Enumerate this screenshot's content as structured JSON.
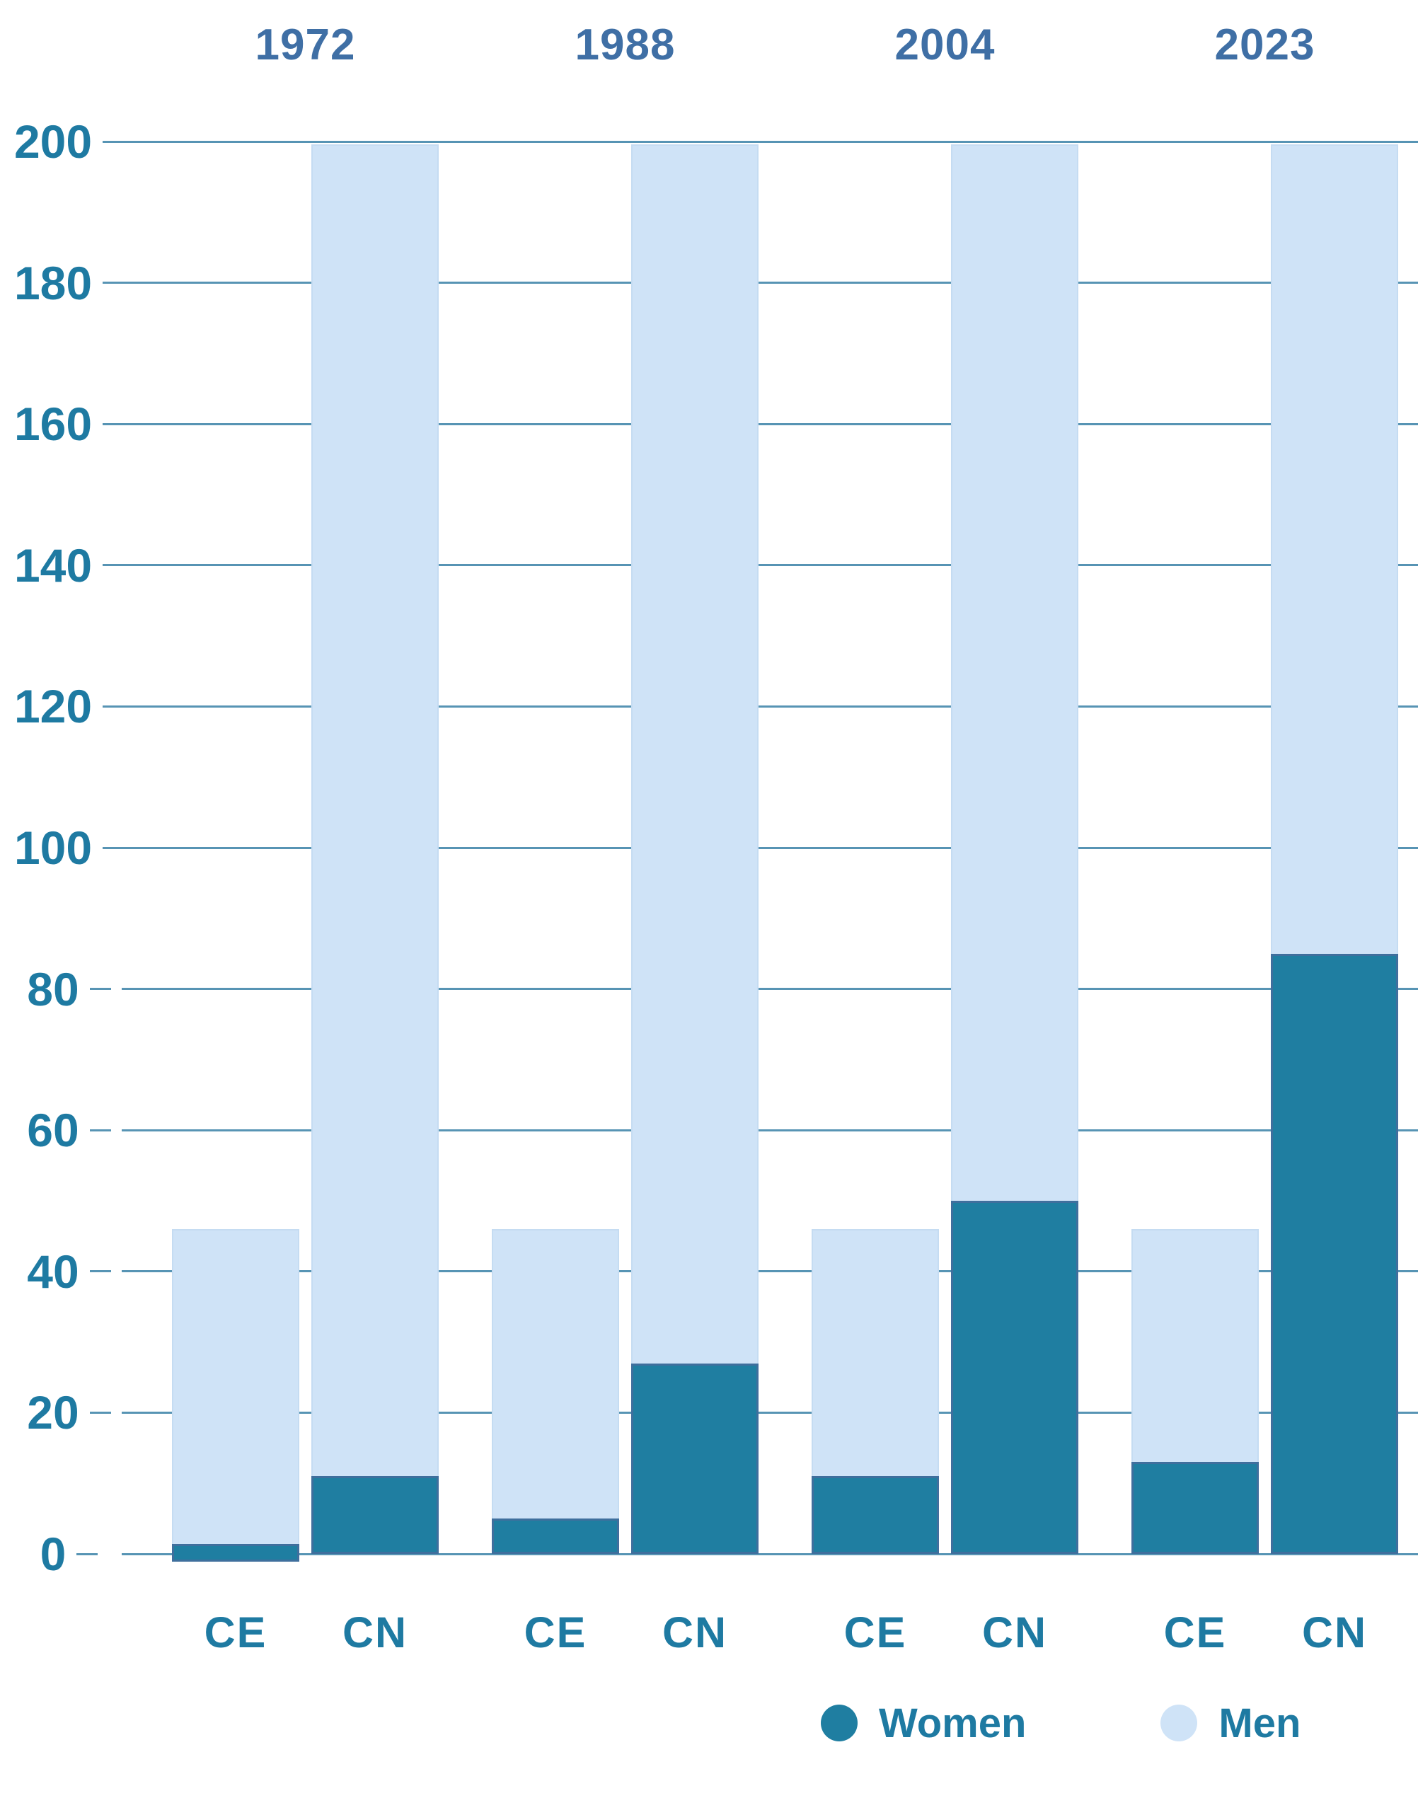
{
  "chart_data": {
    "type": "bar",
    "subtype": "overlay-stacked-columns",
    "years": [
      "1972",
      "1988",
      "2004",
      "2023"
    ],
    "chamber_labels": [
      "CE",
      "CN"
    ],
    "groups": [
      {
        "year": "1972",
        "chamber": "CE",
        "women": 1,
        "men": 45,
        "total": 46
      },
      {
        "year": "1972",
        "chamber": "CN",
        "women": 11,
        "men": 189,
        "total": 200
      },
      {
        "year": "1988",
        "chamber": "CE",
        "women": 5,
        "men": 41,
        "total": 46
      },
      {
        "year": "1988",
        "chamber": "CN",
        "women": 27,
        "men": 173,
        "total": 200
      },
      {
        "year": "2004",
        "chamber": "CE",
        "women": 11,
        "men": 35,
        "total": 46
      },
      {
        "year": "2004",
        "chamber": "CN",
        "women": 50,
        "men": 150,
        "total": 200
      },
      {
        "year": "2023",
        "chamber": "CE",
        "women": 13,
        "men": 33,
        "total": 46
      },
      {
        "year": "2023",
        "chamber": "CN",
        "women": 85,
        "men": 115,
        "total": 200
      }
    ],
    "y_axis": {
      "min": 0,
      "max": 200,
      "step": 20,
      "tick_labels": [
        "200",
        "180",
        "160",
        "140",
        "120",
        "100",
        "80",
        "60",
        "40",
        "20",
        "0"
      ]
    },
    "legend": [
      {
        "label": "Women",
        "color": "#1f7ea1"
      },
      {
        "label": "Men",
        "color": "#cfe3f7"
      }
    ],
    "colors": {
      "women_bar": "#1f7ea1",
      "women_bar_border": "#3f6f9d",
      "men_bar": "#cfe3f7",
      "men_bar_border": "#c5dcf2",
      "gridline": "#5794b4",
      "axis_label_text": "#1e7aa2",
      "year_label_text": "#3f6fa5",
      "category_label_text": "#1e7aa2",
      "legend_text": "#1e7aa2"
    },
    "grid": true,
    "legend_position": "bottom-right"
  }
}
